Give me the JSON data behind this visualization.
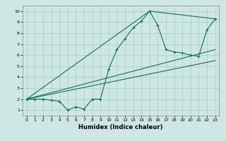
{
  "xlabel": "Humidex (Indice chaleur)",
  "bg_color": "#cde8e4",
  "grid_color": "#b0c8c4",
  "line_color": "#1a6b5a",
  "xlim": [
    -0.5,
    23.5
  ],
  "ylim": [
    0.5,
    10.5
  ],
  "xticks": [
    0,
    1,
    2,
    3,
    4,
    5,
    6,
    7,
    8,
    9,
    10,
    11,
    12,
    13,
    14,
    15,
    16,
    17,
    18,
    19,
    20,
    21,
    22,
    23
  ],
  "yticks": [
    1,
    2,
    3,
    4,
    5,
    6,
    7,
    8,
    9,
    10
  ],
  "series1_x": [
    0,
    1,
    2,
    3,
    4,
    5,
    6,
    7,
    8,
    9,
    10,
    11,
    12,
    13,
    14,
    15,
    16,
    17,
    18,
    19,
    20,
    21,
    22,
    23
  ],
  "series1_y": [
    2,
    2,
    2,
    1.9,
    1.8,
    1.0,
    1.3,
    1.1,
    2.0,
    2.0,
    4.7,
    6.5,
    7.5,
    8.5,
    9.1,
    10.0,
    8.7,
    6.5,
    6.3,
    6.2,
    6.0,
    5.9,
    8.3,
    9.3
  ],
  "series2_x": [
    0,
    23
  ],
  "series2_y": [
    2.0,
    6.5
  ],
  "series3_x": [
    0,
    23
  ],
  "series3_y": [
    2.0,
    5.5
  ],
  "series4_x": [
    0,
    15,
    23
  ],
  "series4_y": [
    2.0,
    10.0,
    9.3
  ]
}
